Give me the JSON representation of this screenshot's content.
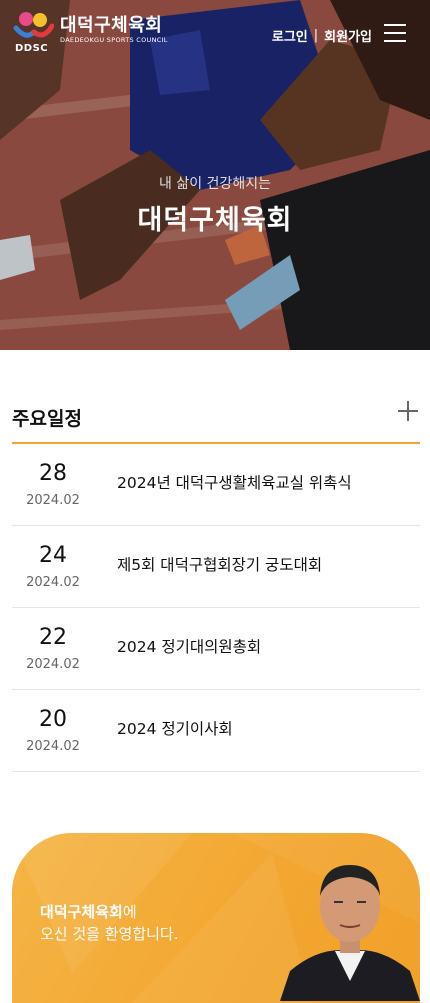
{
  "header": {
    "logo_title": "대덕구체육회",
    "logo_subtitle": "DAEDEOKGU SPORTS COUNCIL",
    "logo_abbr": "DDSC",
    "login": "로그인",
    "divider": "|",
    "signup": "회원가입"
  },
  "hero": {
    "tagline": "내 삶이 건강해지는",
    "title": "대덕구체육회"
  },
  "schedule": {
    "title": "주요일정",
    "items": [
      {
        "day": "28",
        "ym": "2024.02",
        "title": "2024년 대덕구생활체육교실 위촉식"
      },
      {
        "day": "24",
        "ym": "2024.02",
        "title": "제5회 대덕구협회장기 궁도대회"
      },
      {
        "day": "22",
        "ym": "2024.02",
        "title": "2024 정기대의원총회"
      },
      {
        "day": "20",
        "ym": "2024.02",
        "title": "2024 정기이사회"
      }
    ]
  },
  "welcome": {
    "org": "대덕구체육회",
    "particle": "에",
    "line2": "오신 것을 환영합니다."
  },
  "colors": {
    "accent": "#f0a82c",
    "welcome_bg": "#f3a630"
  }
}
